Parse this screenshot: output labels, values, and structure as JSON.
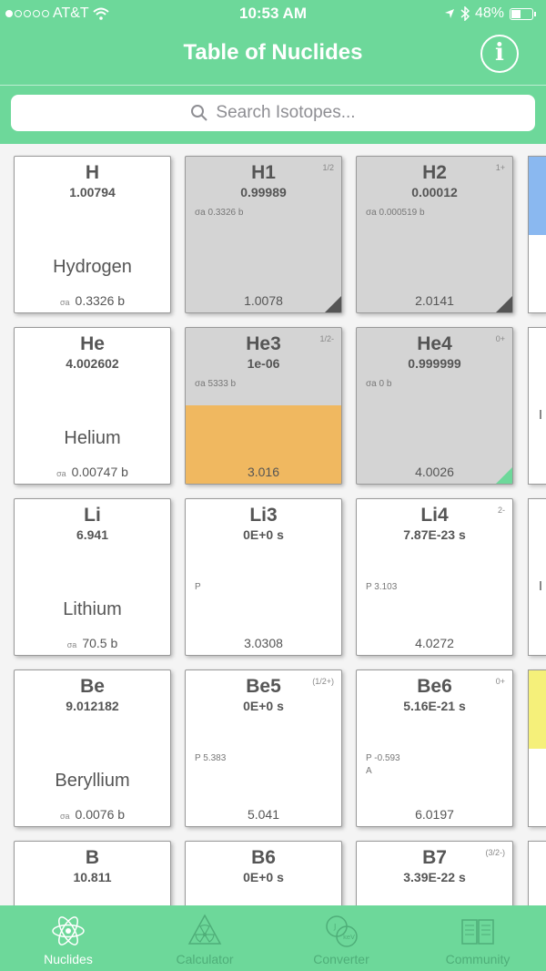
{
  "status_bar": {
    "carrier": "AT&T",
    "time": "10:53 AM",
    "battery": "48%"
  },
  "header": {
    "title": "Table of Nuclides",
    "info_glyph": "i"
  },
  "search": {
    "placeholder": "Search Isotopes..."
  },
  "cards": {
    "h": {
      "symbol": "H",
      "mass": "1.00794",
      "name": "Hydrogen",
      "sigma_label": "σa",
      "sigma": "0.3326 b"
    },
    "h1": {
      "symbol": "H1",
      "mass": "0.99989",
      "spin": "1/2",
      "xs": "σa  0.3326 b",
      "bottom": "1.0078"
    },
    "h2": {
      "symbol": "H2",
      "mass": "0.00012",
      "spin": "1+",
      "xs": "σa  0.000519 b",
      "bottom": "2.0141"
    },
    "he": {
      "symbol": "He",
      "mass": "4.002602",
      "name": "Helium",
      "sigma_label": "σa",
      "sigma": "0.00747 b"
    },
    "he3": {
      "symbol": "He3",
      "mass": "1e-06",
      "spin": "1/2-",
      "xs": "σa  5333 b",
      "bottom": "3.016"
    },
    "he4": {
      "symbol": "He4",
      "mass": "0.999999",
      "spin": "0+",
      "xs": "σa  0 b",
      "bottom": "4.0026"
    },
    "li": {
      "symbol": "Li",
      "mass": "6.941",
      "name": "Lithium",
      "sigma_label": "σa",
      "sigma": "70.5 b"
    },
    "li3": {
      "symbol": "Li3",
      "mass": "0E+0 s",
      "decay": "P",
      "bottom": "3.0308"
    },
    "li4": {
      "symbol": "Li4",
      "mass": "7.87E-23 s",
      "spin": "2-",
      "decay": "P   3.103",
      "bottom": "4.0272"
    },
    "be": {
      "symbol": "Be",
      "mass": "9.012182",
      "name": "Beryllium",
      "sigma_label": "σa",
      "sigma": "0.0076 b"
    },
    "be5": {
      "symbol": "Be5",
      "mass": "0E+0 s",
      "spin": "(1/2+)",
      "decay": "P   5.383",
      "bottom": "5.041"
    },
    "be6": {
      "symbol": "Be6",
      "mass": "5.16E-21 s",
      "spin": "0+",
      "decay": "P   -0.593",
      "decay2": "A",
      "bottom": "6.0197"
    },
    "b": {
      "symbol": "B",
      "mass": "10.811"
    },
    "b6": {
      "symbol": "B6",
      "mass": "0E+0 s"
    },
    "b7": {
      "symbol": "B7",
      "mass": "3.39E-22 s",
      "spin": "(3/2-)"
    }
  },
  "tabs": [
    {
      "label": "Nuclides",
      "icon": "atom-icon",
      "active": true
    },
    {
      "label": "Calculator",
      "icon": "radiation-icon",
      "active": false
    },
    {
      "label": "Converter",
      "icon": "converter-icon",
      "active": false
    },
    {
      "label": "Community",
      "icon": "book-icon",
      "active": false
    }
  ],
  "colors": {
    "accent": "#6dd89a",
    "orange": "#f0b860",
    "gray": "#d4d4d4",
    "peek_blue": "#8ab8f0",
    "peek_yellow": "#f5f07a"
  }
}
